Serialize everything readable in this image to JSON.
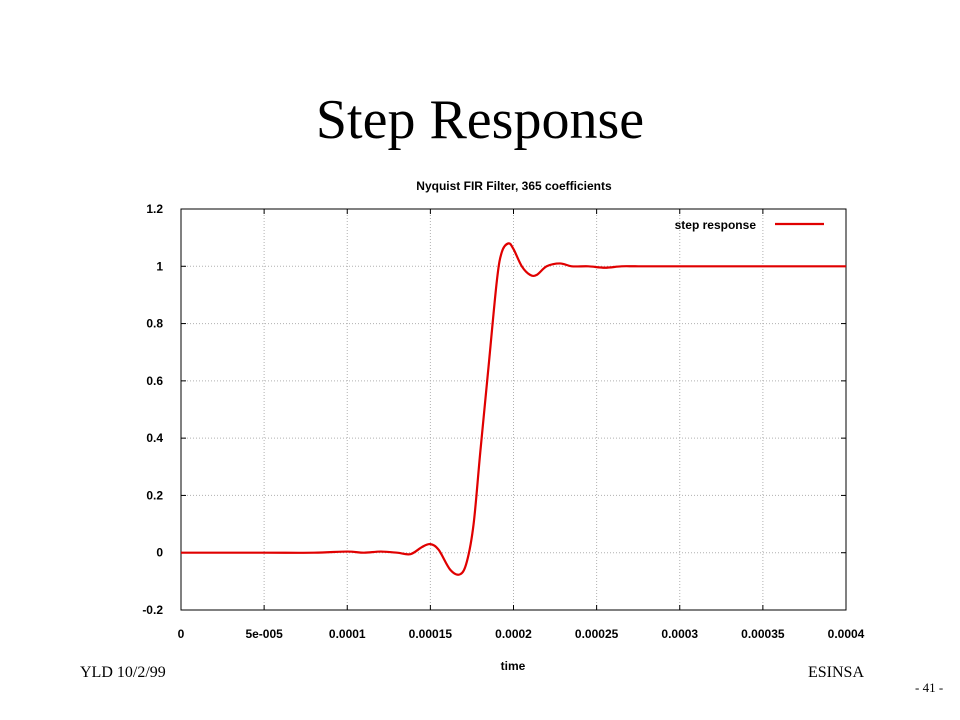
{
  "slide": {
    "title": "Step Response",
    "footer_left": "YLD 10/2/99",
    "footer_right": "ESINSA",
    "page_number": "- 41 -"
  },
  "chart_data": {
    "type": "line",
    "title": "Nyquist FIR Filter, 365 coefficients",
    "xlabel": "time",
    "ylabel": "",
    "xlim": [
      0,
      0.0004
    ],
    "ylim": [
      -0.2,
      1.2
    ],
    "x_ticks": [
      "0",
      "5e-005",
      "0.0001",
      "0.00015",
      "0.0002",
      "0.00025",
      "0.0003",
      "0.00035",
      "0.0004"
    ],
    "y_ticks": [
      "-0.2",
      "0",
      "0.2",
      "0.4",
      "0.6",
      "0.8",
      "1",
      "1.2"
    ],
    "grid": true,
    "legend_position": "top-right",
    "series": [
      {
        "name": "step response",
        "color": "#e00000",
        "x": [
          0,
          5e-05,
          8e-05,
          0.0001,
          0.00011,
          0.00012,
          0.00013,
          0.000138,
          0.000145,
          0.00015,
          0.000155,
          0.000162,
          0.000168,
          0.000172,
          0.000176,
          0.00018,
          0.000185,
          0.00019,
          0.000193,
          0.000197,
          0.0002,
          0.000205,
          0.00021,
          0.000214,
          0.00022,
          0.000228,
          0.000235,
          0.000245,
          0.000255,
          0.000265,
          0.000275,
          0.0003,
          0.00035,
          0.0004
        ],
        "y": [
          0.0,
          0.0,
          0.0,
          0.004,
          0.0,
          0.004,
          0.0,
          -0.005,
          0.02,
          0.03,
          0.01,
          -0.06,
          -0.075,
          -0.03,
          0.1,
          0.35,
          0.65,
          0.95,
          1.05,
          1.08,
          1.06,
          1.0,
          0.97,
          0.97,
          1.0,
          1.01,
          1.0,
          1.0,
          0.995,
          1.0,
          1.0,
          1.0,
          1.0,
          1.0
        ]
      }
    ]
  }
}
